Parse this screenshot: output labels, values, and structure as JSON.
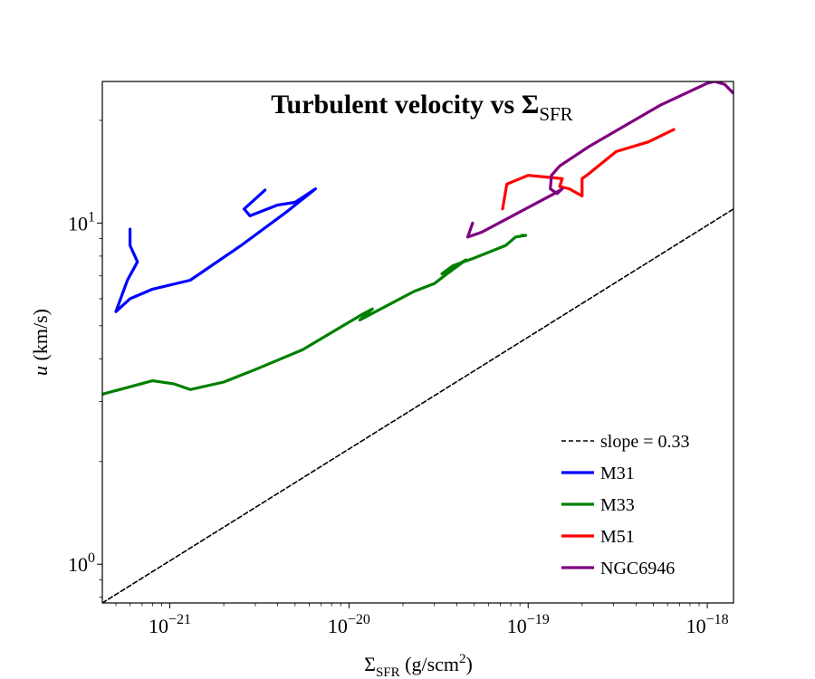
{
  "chart_data": {
    "type": "line",
    "title": "Turbulent velocity vs Σ",
    "title_sub": "SFR",
    "xlabel_main": "Σ",
    "xlabel_sub": "SFR",
    "xlabel_unit": " (g/scm",
    "xlabel_unit_sup": "2",
    "xlabel_unit_end": ")",
    "ylabel_var": "u",
    "ylabel_unit": " (km/s)",
    "xscale": "log",
    "yscale": "log",
    "xlim": [
      4.2e-22,
      1.4e-18
    ],
    "ylim": [
      0.77,
      26
    ],
    "xticks": [
      {
        "value": 1e-21,
        "base": "10",
        "exp": "−21"
      },
      {
        "value": 1e-20,
        "base": "10",
        "exp": "−20"
      },
      {
        "value": 1e-19,
        "base": "10",
        "exp": "−19"
      },
      {
        "value": 1e-18,
        "base": "10",
        "exp": "−18"
      }
    ],
    "yticks": [
      {
        "value": 1,
        "base": "10",
        "exp": "0"
      },
      {
        "value": 10,
        "base": "10",
        "exp": "1"
      }
    ],
    "legend_position": "lower-right",
    "series": [
      {
        "name": "slope = 0.33",
        "color": "#000000",
        "style": "dashed",
        "x": [
          4.2e-22,
          1.4e-18
        ],
        "y": [
          0.77,
          11.0
        ]
      },
      {
        "name": "M31",
        "color": "#0000ff",
        "style": "solid",
        "x": [
          6e-22,
          6e-22,
          6.6e-22,
          5.8e-22,
          5e-22,
          6e-22,
          8e-22,
          1.3e-21,
          2.5e-21,
          4.5e-21,
          6.5e-21,
          5e-21,
          4e-21,
          2.8e-21,
          2.6e-21,
          3.4e-21
        ],
        "y": [
          9.6,
          8.6,
          7.7,
          6.8,
          5.5,
          6.0,
          6.4,
          6.8,
          8.6,
          10.8,
          12.6,
          11.5,
          11.3,
          10.5,
          11.0,
          12.5
        ]
      },
      {
        "name": "M33",
        "color": "#008000",
        "style": "solid",
        "x": [
          4.2e-22,
          8e-22,
          1.05e-21,
          1.3e-21,
          2e-21,
          3e-21,
          5.5e-21,
          1.15e-20,
          1.35e-20,
          1.15e-20,
          1.6e-20,
          2.3e-20,
          3e-20,
          3.4e-20,
          4.5e-20,
          3.3e-20,
          3.8e-20,
          5e-20,
          7.5e-20,
          8.5e-20,
          9.7e-20,
          9.2e-20
        ],
        "y": [
          3.15,
          3.45,
          3.38,
          3.25,
          3.42,
          3.72,
          4.25,
          5.35,
          5.6,
          5.2,
          5.7,
          6.3,
          6.65,
          7.0,
          7.8,
          7.1,
          7.5,
          7.9,
          8.6,
          9.1,
          9.2,
          9.2
        ]
      },
      {
        "name": "M51",
        "color": "#ff0000",
        "style": "solid",
        "x": [
          7.2e-20,
          7.6e-20,
          1e-19,
          1.35e-19,
          1.55e-19,
          1.5e-19,
          1.7e-19,
          2e-19,
          2e-19,
          2.2e-19,
          3.1e-19,
          4.7e-19,
          6.5e-19
        ],
        "y": [
          11.0,
          13.0,
          13.8,
          13.6,
          13.5,
          12.8,
          12.6,
          12.0,
          13.5,
          14.0,
          16.2,
          17.3,
          18.8
        ]
      },
      {
        "name": "NGC6946",
        "color": "#800080",
        "style": "solid",
        "x": [
          4.9e-20,
          4.6e-20,
          5.5e-20,
          1.4e-19,
          1.55e-19,
          1.45e-19,
          1.33e-19,
          1.35e-19,
          1.5e-19,
          2.2e-19,
          5.5e-19,
          1e-18,
          1.1e-18,
          1.25e-18,
          1.4e-18
        ],
        "y": [
          10.0,
          9.1,
          9.4,
          12.2,
          12.6,
          12.2,
          12.6,
          13.8,
          14.7,
          16.8,
          22.2,
          25.7,
          26.0,
          25.5,
          24.0
        ]
      }
    ]
  }
}
